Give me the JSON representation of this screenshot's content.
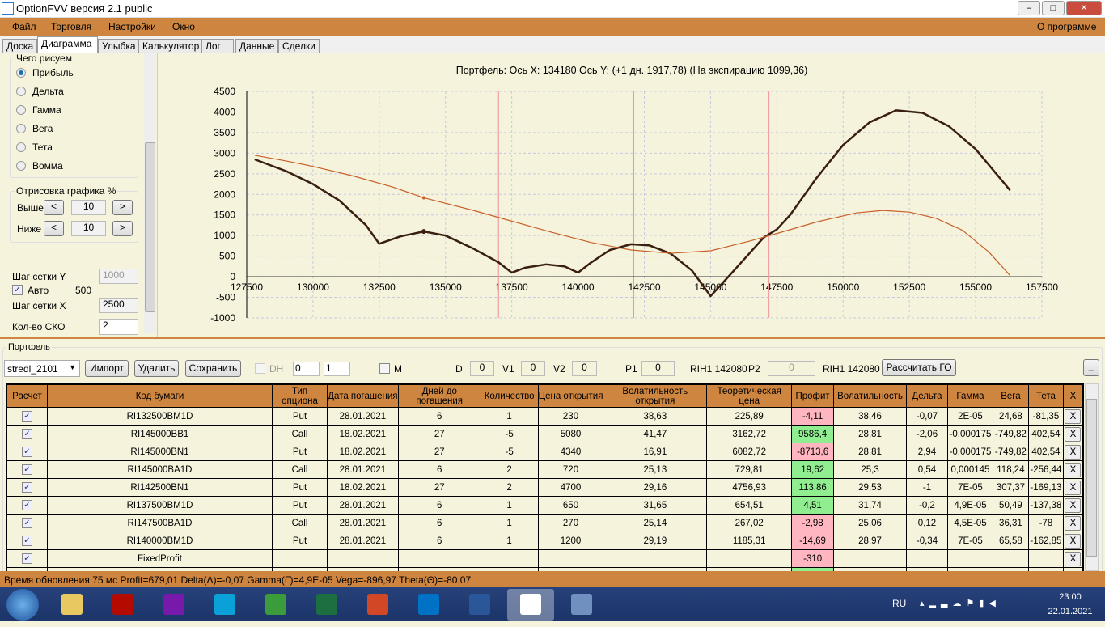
{
  "window": {
    "title": "OptionFVV версия 2.1 public",
    "minimize": "–",
    "maximize": "□",
    "close": "✕"
  },
  "menu": {
    "items": [
      "Файл",
      "Торговля",
      "Настройки",
      "Окно"
    ],
    "about": "О программе"
  },
  "tabs": [
    "Доска",
    "Диаграмма",
    "Улыбка",
    "Калькулятор",
    "Лог",
    "Данные",
    "Сделки"
  ],
  "active_tab": "Диаграмма",
  "left": {
    "draw_group": "Чего рисуем",
    "radios": [
      "Прибыль",
      "Дельта",
      "Гамма",
      "Вега",
      "Тета",
      "Вомма"
    ],
    "selected": "Прибыль",
    "render_group": "Отрисовка графика %",
    "above_label": "Выше",
    "above_value": "10",
    "below_label": "Ниже",
    "below_value": "10",
    "dec": "<",
    "inc": ">",
    "grid_y_label": "Шаг сетки Y",
    "grid_y_value": "1000",
    "auto_label": "Авто",
    "auto_checked": true,
    "auto_value": "500",
    "grid_x_label": "Шаг сетки X",
    "grid_x_value": "2500",
    "sko_label": "Кол-во СКО",
    "sko_value": "2"
  },
  "chart_data": {
    "type": "line",
    "title": "Портфель: Ось X: 134180 Ось Y:  (+1 дн. 1917,78)  (На экспирацию 1099,36)",
    "xlim": [
      127500,
      157500
    ],
    "ylim": [
      -1000,
      4500
    ],
    "xticks": [
      127500,
      130000,
      132500,
      135000,
      137500,
      140000,
      142500,
      145000,
      147500,
      150000,
      152500,
      155000,
      157500
    ],
    "yticks": [
      4500,
      4000,
      3500,
      3000,
      2500,
      2000,
      1500,
      1000,
      500,
      0,
      -500,
      -1000
    ],
    "grid": true,
    "series": [
      {
        "color": "#3a1e10",
        "points": [
          [
            127800,
            2850
          ],
          [
            129000,
            2560
          ],
          [
            130000,
            2250
          ],
          [
            131000,
            1850
          ],
          [
            132000,
            1250
          ],
          [
            132500,
            800
          ],
          [
            133300,
            980
          ],
          [
            134180,
            1099
          ],
          [
            135000,
            1000
          ],
          [
            136000,
            700
          ],
          [
            137000,
            350
          ],
          [
            137500,
            100
          ],
          [
            138000,
            220
          ],
          [
            138800,
            300
          ],
          [
            139500,
            250
          ],
          [
            140000,
            100
          ],
          [
            140500,
            350
          ],
          [
            141200,
            650
          ],
          [
            142000,
            790
          ],
          [
            142700,
            760
          ],
          [
            143500,
            560
          ],
          [
            144300,
            150
          ],
          [
            145000,
            -470
          ],
          [
            145600,
            -50
          ],
          [
            146300,
            450
          ],
          [
            147000,
            950
          ],
          [
            147500,
            1150
          ],
          [
            148000,
            1500
          ],
          [
            149000,
            2400
          ],
          [
            150000,
            3200
          ],
          [
            151000,
            3750
          ],
          [
            152000,
            4040
          ],
          [
            153000,
            3980
          ],
          [
            154000,
            3650
          ],
          [
            155000,
            3100
          ],
          [
            156300,
            2100
          ]
        ]
      },
      {
        "color": "#c8602a",
        "points": [
          [
            127800,
            2950
          ],
          [
            129000,
            2810
          ],
          [
            130000,
            2680
          ],
          [
            131500,
            2450
          ],
          [
            133000,
            2180
          ],
          [
            134180,
            1918
          ],
          [
            136000,
            1620
          ],
          [
            137500,
            1350
          ],
          [
            139000,
            1080
          ],
          [
            140500,
            830
          ],
          [
            142000,
            650
          ],
          [
            143500,
            570
          ],
          [
            145000,
            630
          ],
          [
            146500,
            870
          ],
          [
            147500,
            1050
          ],
          [
            149000,
            1330
          ],
          [
            150500,
            1550
          ],
          [
            151500,
            1610
          ],
          [
            152500,
            1570
          ],
          [
            153500,
            1420
          ],
          [
            154500,
            1130
          ],
          [
            155500,
            600
          ],
          [
            156300,
            30
          ]
        ]
      }
    ],
    "markers": [
      {
        "x": 134180,
        "y": 1918,
        "series": 1
      },
      {
        "x": 134180,
        "y": 1099,
        "series": 0
      }
    ],
    "vlines": [
      {
        "x": 137000,
        "color": "#f0a0a0"
      },
      {
        "x": 142080,
        "color": "#333333"
      },
      {
        "x": 147200,
        "color": "#f0a0a0"
      }
    ]
  },
  "portfolio": {
    "group": "Портфель",
    "select": "stredl_2101",
    "import": "Импорт",
    "delete": "Удалить",
    "save": "Сохранить",
    "dh": "DH",
    "spin1": "0",
    "spin2": "1",
    "m": "M",
    "d_label": "D",
    "d": "0",
    "v1_label": "V1",
    "v1": "0",
    "v2_label": "V2",
    "v2": "0",
    "p1_label": "P1",
    "p1": "0",
    "p1_info": "RIH1 142080",
    "p2_label": "P2",
    "p2": "0",
    "p2_info": "RIH1 142080",
    "calc_go": "Рассчитать ГО",
    "minimize": "_",
    "columns": [
      "Расчет",
      "Код бумаги",
      "Тип опциона",
      "Дата погашения",
      "Дней до погашения",
      "Количество",
      "Цена открытия",
      "Волатильность открытия",
      "Теоретическая цена",
      "Профит",
      "Волатильность",
      "Дельта",
      "Гамма",
      "Вега",
      "Тета",
      "X"
    ],
    "rows": [
      [
        "RI132500BM1D",
        "Put",
        "28.01.2021",
        "6",
        "1",
        "230",
        "38,63",
        "225,89",
        "-4,11",
        "38,46",
        "-0,07",
        "2E-05",
        "24,68",
        "-81,35"
      ],
      [
        "RI145000BB1",
        "Call",
        "18.02.2021",
        "27",
        "-5",
        "5080",
        "41,47",
        "3162,72",
        "9586,4",
        "28,81",
        "-2,06",
        "-0,000175",
        "-749,82",
        "402,54"
      ],
      [
        "RI145000BN1",
        "Put",
        "18.02.2021",
        "27",
        "-5",
        "4340",
        "16,91",
        "6082,72",
        "-8713,6",
        "28,81",
        "2,94",
        "-0,000175",
        "-749,82",
        "402,54"
      ],
      [
        "RI145000BA1D",
        "Call",
        "28.01.2021",
        "6",
        "2",
        "720",
        "25,13",
        "729,81",
        "19,62",
        "25,3",
        "0,54",
        "0,000145",
        "118,24",
        "-256,44"
      ],
      [
        "RI142500BN1",
        "Put",
        "18.02.2021",
        "27",
        "2",
        "4700",
        "29,16",
        "4756,93",
        "113,86",
        "29,53",
        "-1",
        "7E-05",
        "307,37",
        "-169,13"
      ],
      [
        "RI137500BM1D",
        "Put",
        "28.01.2021",
        "6",
        "1",
        "650",
        "31,65",
        "654,51",
        "4,51",
        "31,74",
        "-0,2",
        "4,9E-05",
        "50,49",
        "-137,38"
      ],
      [
        "RI147500BA1D",
        "Call",
        "28.01.2021",
        "6",
        "1",
        "270",
        "25,14",
        "267,02",
        "-2,98",
        "25,06",
        "0,12",
        "4,5E-05",
        "36,31",
        "-78"
      ],
      [
        "RI140000BM1D",
        "Put",
        "28.01.2021",
        "6",
        "1",
        "1200",
        "29,19",
        "1185,31",
        "-14,69",
        "28,97",
        "-0,34",
        "7E-05",
        "65,58",
        "-162,85"
      ],
      [
        "FixedProfit",
        "",
        "",
        "",
        "",
        "",
        "",
        "",
        "-310",
        "",
        "",
        "",
        "",
        ""
      ]
    ],
    "delete_label": "X"
  },
  "status": "Время обновления 75 мс  Profit=679,01 Delta(Δ)=-0,07 Gamma(Γ)=4,9E-05 Vega=-896,97 Theta(Θ)=-80,07",
  "taskbar": {
    "apps": [
      "explorer",
      "acrobat",
      "onenote",
      "app",
      "chrome",
      "excel",
      "powerpoint",
      "outlook",
      "word",
      "optionfvv",
      "app2"
    ],
    "lang": "RU",
    "time": "23:00",
    "date": "22.01.2021"
  },
  "colors": {
    "accent": "#cd853f",
    "profit_pos": "#90ee90",
    "profit_neg": "#ffb6c1"
  }
}
